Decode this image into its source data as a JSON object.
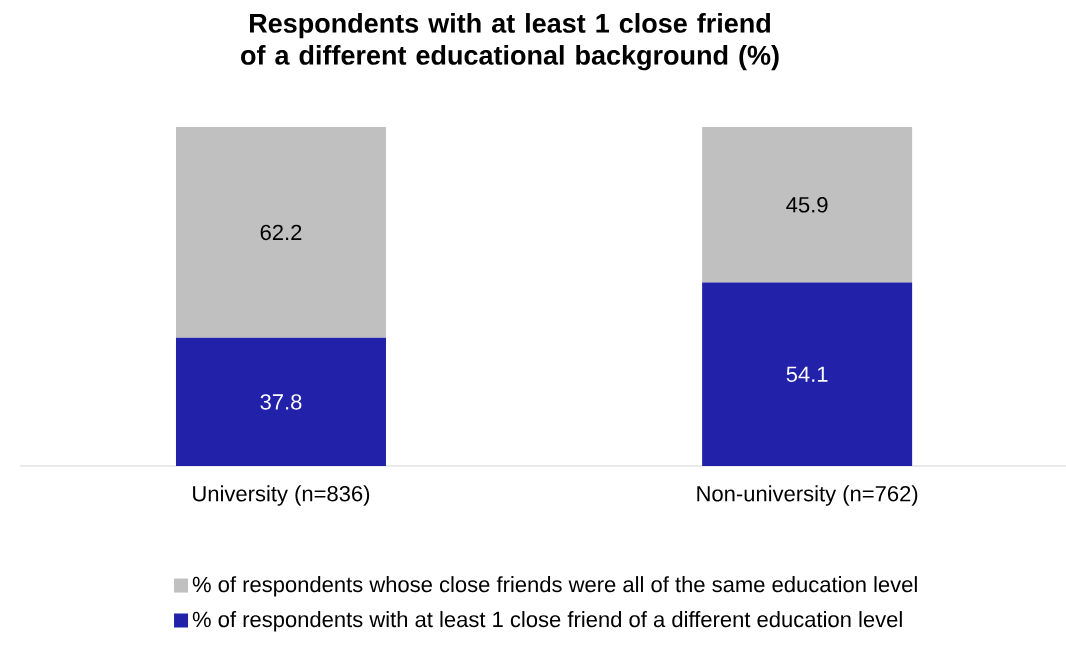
{
  "chart_data": {
    "type": "bar",
    "title": "Respondents with at least 1 close friend of a different educational background (%)",
    "categories": [
      "University (n=836)",
      "Non-university (n=762)"
    ],
    "stacked": true,
    "data_labels": true,
    "legend": "bottom",
    "series": [
      {
        "name": "% of respondents with at least 1 close friend of a different education level",
        "color": "#2121a9",
        "values": [
          37.8,
          54.1
        ]
      },
      {
        "name": "% of respondents whose close friends were all of the same education level",
        "color": "#c0c0c0",
        "values": [
          62.2,
          45.9
        ]
      }
    ]
  }
}
